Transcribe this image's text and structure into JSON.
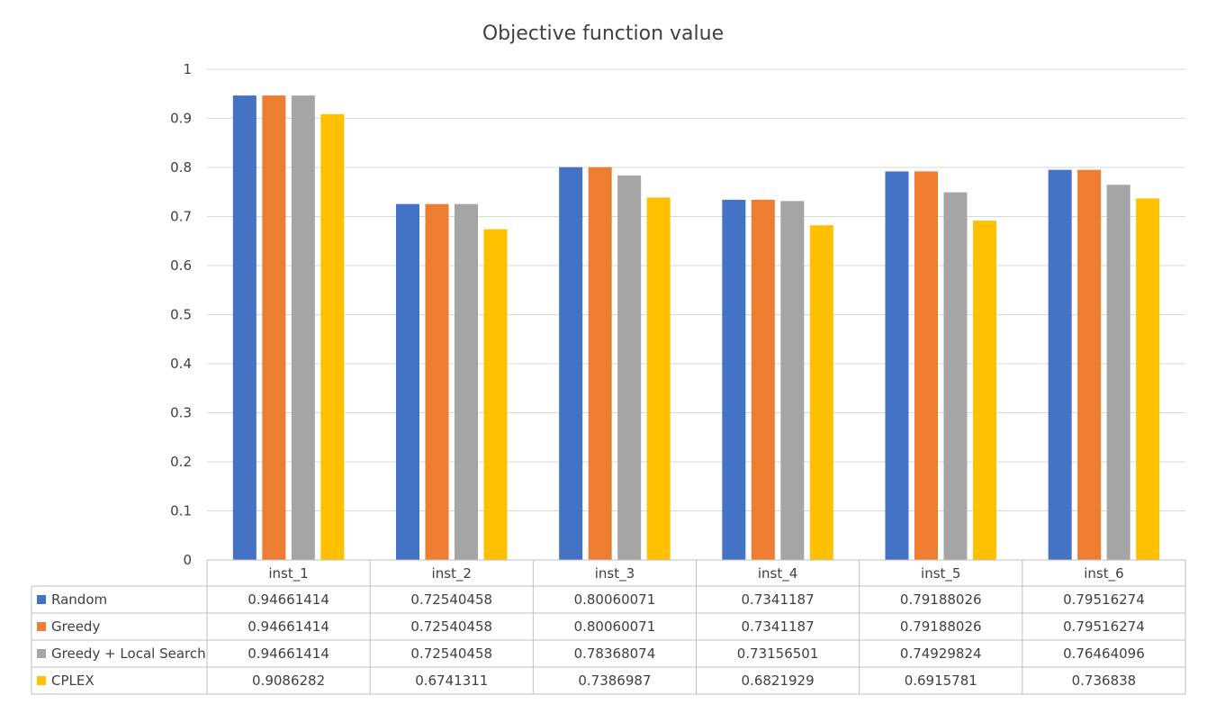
{
  "chart_data": {
    "type": "bar",
    "title": "Objective function value",
    "xlabel": "",
    "ylabel": "",
    "ylim": [
      0,
      1
    ],
    "yticks": [
      0,
      0.1,
      0.2,
      0.3,
      0.4,
      0.5,
      0.6,
      0.7,
      0.8,
      0.9,
      1
    ],
    "ytick_labels": [
      "0",
      "0.1",
      "0.2",
      "0.3",
      "0.4",
      "0.5",
      "0.6",
      "0.7",
      "0.8",
      "0.9",
      "1"
    ],
    "grid": true,
    "legend": "data-table-bottom",
    "categories": [
      "inst_1",
      "inst_2",
      "inst_3",
      "inst_4",
      "inst_5",
      "inst_6"
    ],
    "series": [
      {
        "name": "Random",
        "color": "#4472C4",
        "values": [
          0.94661414,
          0.72540458,
          0.80060071,
          0.7341187,
          0.79188026,
          0.79516274
        ],
        "labels": [
          "0.94661414",
          "0.72540458",
          "0.80060071",
          "0.7341187",
          "0.79188026",
          "0.79516274"
        ]
      },
      {
        "name": "Greedy",
        "color": "#ED7D31",
        "values": [
          0.94661414,
          0.72540458,
          0.80060071,
          0.7341187,
          0.79188026,
          0.79516274
        ],
        "labels": [
          "0.94661414",
          "0.72540458",
          "0.80060071",
          "0.7341187",
          "0.79188026",
          "0.79516274"
        ]
      },
      {
        "name": "Greedy + Local Search",
        "color": "#A5A5A5",
        "values": [
          0.94661414,
          0.72540458,
          0.78368074,
          0.73156501,
          0.74929824,
          0.76464096
        ],
        "labels": [
          "0.94661414",
          "0.72540458",
          "0.78368074",
          "0.73156501",
          "0.74929824",
          "0.76464096"
        ]
      },
      {
        "name": "CPLEX",
        "color": "#FFC000",
        "values": [
          0.9086282,
          0.6741311,
          0.7386987,
          0.6821929,
          0.6915781,
          0.736838
        ],
        "labels": [
          "0.9086282",
          "0.6741311",
          "0.7386987",
          "0.6821929",
          "0.6915781",
          "0.736838"
        ]
      }
    ]
  }
}
